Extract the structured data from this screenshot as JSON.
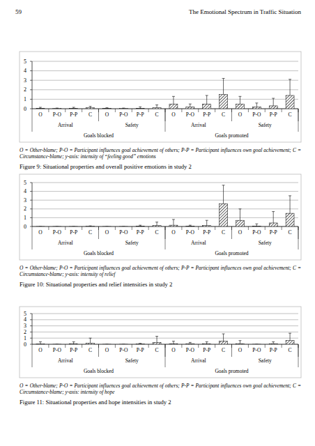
{
  "page": {
    "number": "59",
    "running_head": "The Emotional Spectrum in Traffic Situation"
  },
  "chart_data": [
    {
      "type": "bar",
      "title": "Figure 9: Situational properties and overall positive emotions in study 2",
      "note": "O = Other-blame; P-O = Participant influences goal achievement of others; P-P = Participant influences own goal achievement; C = Circumstance-blame; y-axis: intensity of “feeling good” emotions",
      "categories": [
        "O",
        "P-O",
        "P-P",
        "C",
        "O",
        "P-O",
        "P-P",
        "C",
        "O",
        "P-O",
        "P-P",
        "C",
        "O",
        "P-O",
        "P-P",
        "C"
      ],
      "x_groups": [
        "Arrival",
        "Safety",
        "Arrival",
        "Safety"
      ],
      "x_supergroups": [
        "Goals blocked",
        "Goals promoted"
      ],
      "values": [
        0.05,
        0.02,
        0.05,
        0.1,
        0.05,
        0.02,
        0.05,
        0.1,
        0.5,
        0.2,
        0.5,
        1.5,
        0.5,
        0.2,
        0.3,
        1.4
      ],
      "errors": [
        0.1,
        0.05,
        0.1,
        0.15,
        0.05,
        0.05,
        0.15,
        0.3,
        0.8,
        0.3,
        0.9,
        1.7,
        0.8,
        0.4,
        0.8,
        1.7
      ],
      "ylim": [
        0,
        5
      ],
      "yticks": [
        0,
        1,
        2,
        3,
        4,
        5
      ],
      "grid": true
    },
    {
      "type": "bar",
      "title": "Figure 10: Situational properties and relief intensities in study 2",
      "note": "O = Other-blame; P-O = Participant influences goal achievement of others; P-P = Participant influences own goal achievement; C = Circumstance-blame; y-axis: intensity of relief",
      "categories": [
        "O",
        "P-O",
        "P-P",
        "C",
        "O",
        "P-O",
        "P-P",
        "C",
        "O",
        "P-O",
        "P-P",
        "C",
        "O",
        "P-O",
        "P-P",
        "C"
      ],
      "x_groups": [
        "Arrival",
        "Safety",
        "Arrival",
        "Safety"
      ],
      "x_supergroups": [
        "Goals blocked",
        "Goals promoted"
      ],
      "values": [
        0,
        0,
        0,
        0.02,
        0,
        0,
        0.05,
        0.1,
        0.15,
        0.05,
        0.1,
        2.6,
        0.7,
        0.05,
        0.4,
        1.5
      ],
      "errors": [
        0,
        0,
        0,
        0.05,
        0,
        0,
        0.1,
        0.4,
        0.65,
        0.1,
        0.6,
        2.1,
        1.3,
        0.25,
        1.3,
        2.0
      ],
      "ylim": [
        0,
        5
      ],
      "yticks": [
        0,
        1,
        2,
        3,
        4,
        5
      ],
      "grid": true
    },
    {
      "type": "bar",
      "title": "Figure 11: Situational properties and hope intensities in study 2",
      "note": "O = Other-blame; P-O = Participant influences goal achievement of others; P-P = Participant influences own goal achievement; C = Circumstance-blame; y-axis: intensity of hope",
      "categories": [
        "O",
        "P-O",
        "P-P",
        "C",
        "O",
        "P-O",
        "P-P",
        "C",
        "O",
        "P-O",
        "P-P",
        "C",
        "O",
        "P-O",
        "P-P",
        "C"
      ],
      "x_groups": [
        "Arrival",
        "Safety",
        "Arrival",
        "Safety"
      ],
      "x_supergroups": [
        "Goals blocked",
        "Goals promoted"
      ],
      "values": [
        0.05,
        0,
        0.1,
        0.2,
        0,
        0,
        0.05,
        0.3,
        0.1,
        0.1,
        0.1,
        0.5,
        0.1,
        0,
        0.1,
        0.6
      ],
      "errors": [
        0.35,
        0,
        0.3,
        0.8,
        0,
        0,
        0.1,
        1.0,
        0.4,
        0.2,
        0.3,
        1.2,
        0.5,
        0,
        0.3,
        1.2
      ],
      "ylim": [
        0,
        5
      ],
      "yticks": [
        0,
        1,
        2,
        3,
        4,
        5
      ],
      "grid": true
    }
  ]
}
